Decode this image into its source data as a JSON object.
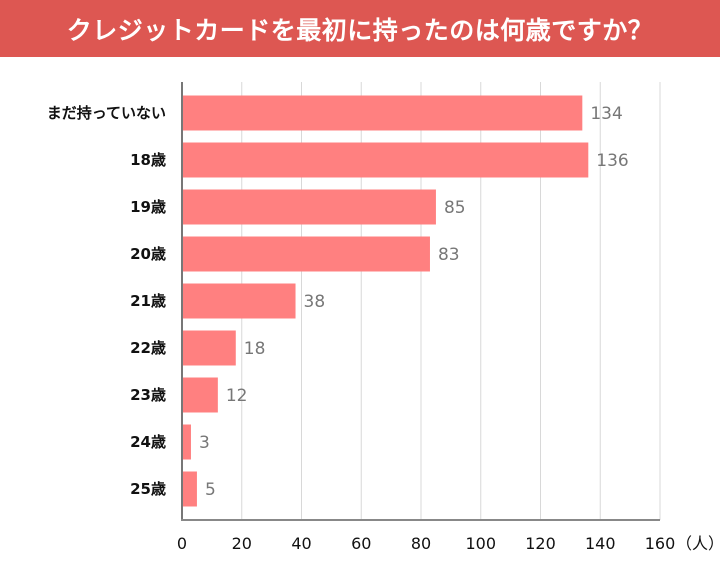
{
  "chart_data": {
    "type": "bar",
    "orientation": "horizontal",
    "title": "クレジットカードを最初に持ったのは何歳ですか？",
    "categories": [
      "まだ持っていない",
      "18歳",
      "19歳",
      "20歳",
      "21歳",
      "22歳",
      "23歳",
      "24歳",
      "25歳"
    ],
    "values": [
      134,
      136,
      85,
      83,
      38,
      18,
      12,
      3,
      5
    ],
    "xlim": [
      0,
      160
    ],
    "xticks": [
      "0",
      "20",
      "40",
      "60",
      "80",
      "100",
      "120",
      "140",
      "160"
    ],
    "xunit": "（人）",
    "grid": true,
    "bar_color": "#ff8080",
    "header_color": "#dd5752"
  }
}
